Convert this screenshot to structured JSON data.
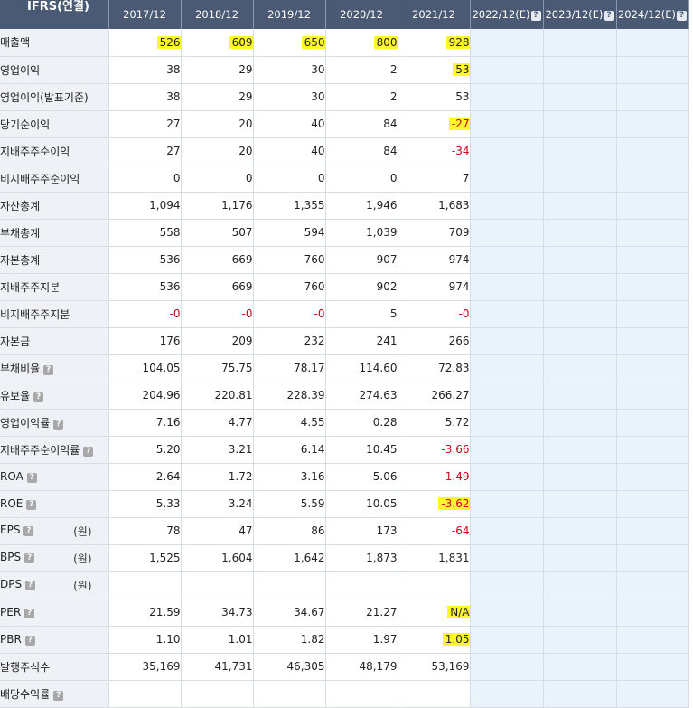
{
  "table": {
    "corner_label": "IFRS(연결)",
    "columns": [
      {
        "label": "2017/12",
        "estimate": false
      },
      {
        "label": "2018/12",
        "estimate": false
      },
      {
        "label": "2019/12",
        "estimate": false
      },
      {
        "label": "2020/12",
        "estimate": false
      },
      {
        "label": "2021/12",
        "estimate": false
      },
      {
        "label": "2022/12(E)",
        "estimate": true
      },
      {
        "label": "2023/12(E)",
        "estimate": true
      },
      {
        "label": "2024/12(E)",
        "estimate": true
      }
    ],
    "help_icon_glyph": "?",
    "rows": [
      {
        "label": "매출액",
        "sub": false,
        "help": false,
        "unit": "",
        "values": [
          "526",
          "609",
          "650",
          "800",
          "928"
        ],
        "highlight": [
          0,
          1,
          2,
          3,
          4
        ]
      },
      {
        "label": "영업이익",
        "sub": false,
        "help": false,
        "unit": "",
        "values": [
          "38",
          "29",
          "30",
          "2",
          "53"
        ],
        "highlight": [
          4
        ]
      },
      {
        "label": "영업이익(발표기준)",
        "sub": false,
        "help": false,
        "unit": "",
        "values": [
          "38",
          "29",
          "30",
          "2",
          "53"
        ],
        "highlight": []
      },
      {
        "label": "당기순이익",
        "sub": false,
        "help": false,
        "unit": "",
        "values": [
          "27",
          "20",
          "40",
          "84",
          "-27"
        ],
        "highlight": [
          4
        ]
      },
      {
        "label": "지배주주순이익",
        "sub": true,
        "help": false,
        "unit": "",
        "values": [
          "27",
          "20",
          "40",
          "84",
          "-34"
        ],
        "highlight": []
      },
      {
        "label": "비지배주주순이익",
        "sub": true,
        "help": false,
        "unit": "",
        "values": [
          "0",
          "0",
          "0",
          "0",
          "7"
        ],
        "highlight": []
      },
      {
        "label": "자산총계",
        "sub": false,
        "help": false,
        "unit": "",
        "values": [
          "1,094",
          "1,176",
          "1,355",
          "1,946",
          "1,683"
        ],
        "highlight": []
      },
      {
        "label": "부채총계",
        "sub": false,
        "help": false,
        "unit": "",
        "values": [
          "558",
          "507",
          "594",
          "1,039",
          "709"
        ],
        "highlight": []
      },
      {
        "label": "자본총계",
        "sub": false,
        "help": false,
        "unit": "",
        "values": [
          "536",
          "669",
          "760",
          "907",
          "974"
        ],
        "highlight": []
      },
      {
        "label": "지배주주지분",
        "sub": true,
        "help": false,
        "unit": "",
        "values": [
          "536",
          "669",
          "760",
          "902",
          "974"
        ],
        "highlight": []
      },
      {
        "label": "비지배주주지분",
        "sub": true,
        "help": false,
        "unit": "",
        "values": [
          "-0",
          "-0",
          "-0",
          "5",
          "-0"
        ],
        "highlight": []
      },
      {
        "label": "자본금",
        "sub": false,
        "help": false,
        "unit": "",
        "values": [
          "176",
          "209",
          "232",
          "241",
          "266"
        ],
        "highlight": []
      },
      {
        "label": "부채비율",
        "sub": false,
        "help": true,
        "unit": "",
        "values": [
          "104.05",
          "75.75",
          "78.17",
          "114.60",
          "72.83"
        ],
        "highlight": []
      },
      {
        "label": "유보율",
        "sub": false,
        "help": true,
        "unit": "",
        "values": [
          "204.96",
          "220.81",
          "228.39",
          "274.63",
          "266.27"
        ],
        "highlight": []
      },
      {
        "label": "영업이익률",
        "sub": false,
        "help": true,
        "unit": "",
        "values": [
          "7.16",
          "4.77",
          "4.55",
          "0.28",
          "5.72"
        ],
        "highlight": []
      },
      {
        "label": "지배주주순이익률",
        "sub": false,
        "help": true,
        "unit": "",
        "values": [
          "5.20",
          "3.21",
          "6.14",
          "10.45",
          "-3.66"
        ],
        "highlight": []
      },
      {
        "label": "ROA",
        "sub": false,
        "help": true,
        "unit": "",
        "values": [
          "2.64",
          "1.72",
          "3.16",
          "5.06",
          "-1.49"
        ],
        "highlight": []
      },
      {
        "label": "ROE",
        "sub": false,
        "help": true,
        "unit": "",
        "values": [
          "5.33",
          "3.24",
          "5.59",
          "10.05",
          "-3.62"
        ],
        "highlight": [
          4
        ]
      },
      {
        "label": "EPS",
        "sub": false,
        "help": true,
        "unit": "(원)",
        "values": [
          "78",
          "47",
          "86",
          "173",
          "-64"
        ],
        "highlight": []
      },
      {
        "label": "BPS",
        "sub": false,
        "help": true,
        "unit": "(원)",
        "values": [
          "1,525",
          "1,604",
          "1,642",
          "1,873",
          "1,831"
        ],
        "highlight": []
      },
      {
        "label": "DPS",
        "sub": false,
        "help": true,
        "unit": "(원)",
        "values": [
          "",
          "",
          "",
          "",
          ""
        ],
        "highlight": []
      },
      {
        "label": "PER",
        "sub": false,
        "help": true,
        "unit": "",
        "values": [
          "21.59",
          "34.73",
          "34.67",
          "21.27",
          "N/A"
        ],
        "highlight": [
          4
        ]
      },
      {
        "label": "PBR",
        "sub": false,
        "help": true,
        "unit": "",
        "values": [
          "1.10",
          "1.01",
          "1.82",
          "1.97",
          "1.05"
        ],
        "highlight": [
          4
        ]
      },
      {
        "label": "발행주식수",
        "sub": false,
        "help": false,
        "unit": "",
        "values": [
          "35,169",
          "41,731",
          "46,305",
          "48,179",
          "53,169"
        ],
        "highlight": []
      },
      {
        "label": "배당수익률",
        "sub": false,
        "help": true,
        "unit": "",
        "values": [
          "",
          "",
          "",
          "",
          ""
        ],
        "highlight": []
      }
    ]
  },
  "colors": {
    "header_bg": "#4a5a74",
    "label_bg": "#eef1f5",
    "estimate_bg": "#e8f4fa",
    "negative": "#d0021b",
    "highlight": "#fff82a"
  }
}
